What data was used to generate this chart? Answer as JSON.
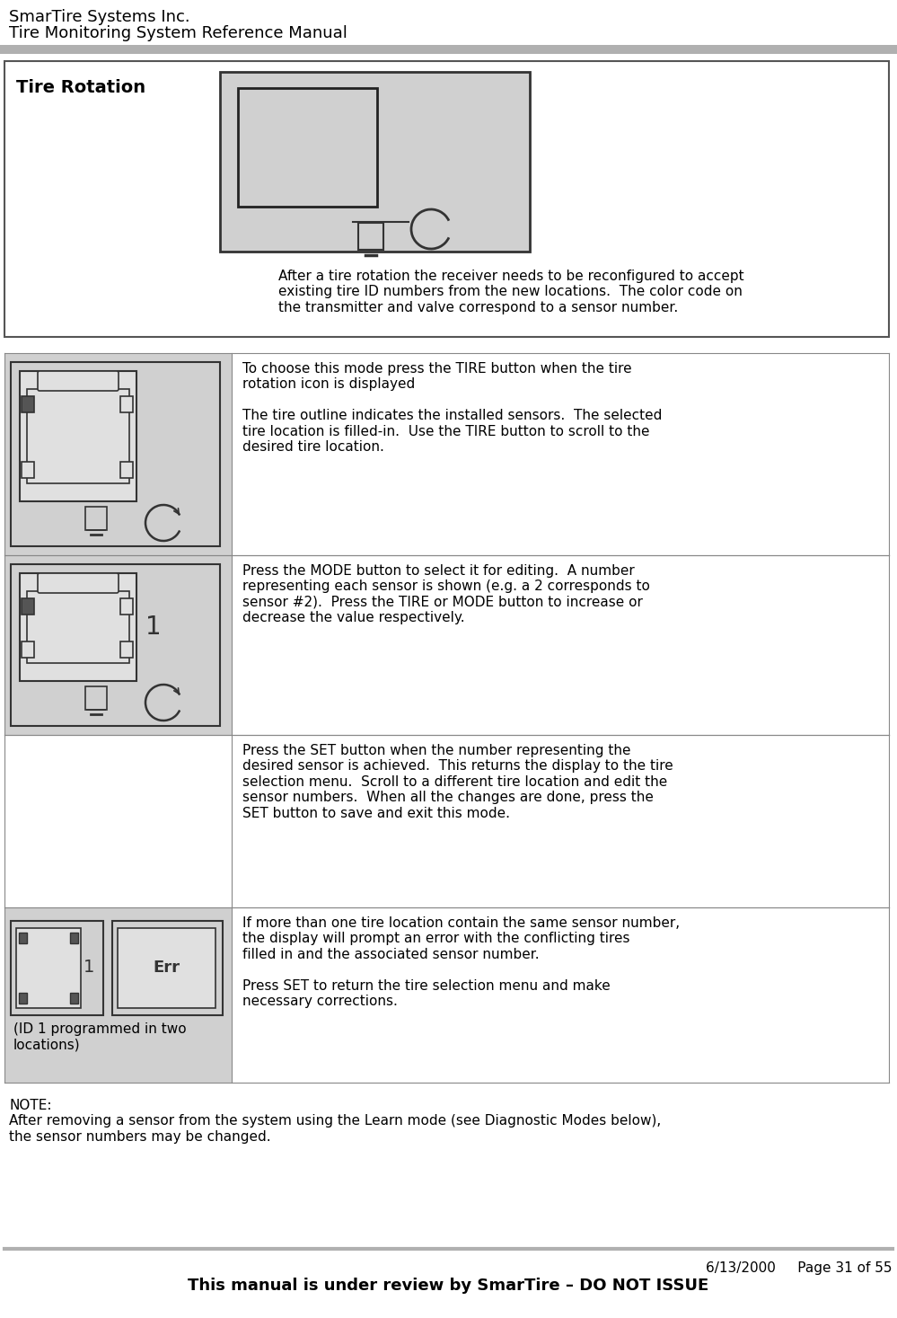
{
  "header_line1": "SmarTire Systems Inc.",
  "header_line2": "Tire Monitoring System Reference Manual",
  "header_bar_color": "#b0b0b0",
  "footer_date": "6/13/2000",
  "footer_page": "Page 31 of 55",
  "footer_note": "This manual is under review by SmarTire – DO NOT ISSUE",
  "section_title": "Tire Rotation",
  "intro_text": "After a tire rotation the receiver needs to be reconfigured to accept\nexisting tire ID numbers from the new locations.  The color code on\nthe transmitter and valve correspond to a sensor number.",
  "row1_text": "To choose this mode press the TIRE button when the tire\nrotation icon is displayed\n\nThe tire outline indicates the installed sensors.  The selected\ntire location is filled-in.  Use the TIRE button to scroll to the\ndesired tire location.",
  "row2_text": "Press the MODE button to select it for editing.  A number\nrepresenting each sensor is shown (e.g. a 2 corresponds to\nsensor #2).  Press the TIRE or MODE button to increase or\ndecrease the value respectively.",
  "row3_text": "Press the SET button when the number representing the\ndesired sensor is achieved.  This returns the display to the tire\nselection menu.  Scroll to a different tire location and edit the\nsensor numbers.  When all the changes are done, press the\nSET button to save and exit this mode.",
  "row4_text": "If more than one tire location contain the same sensor number,\nthe display will prompt an error with the conflicting tires\nfilled in and the associated sensor number.\n\nPress SET to return the tire selection menu and make\nnecessary corrections.",
  "row4_caption": "(ID 1 programmed in two\nlocations)",
  "note_text": "NOTE:\nAfter removing a sensor from the system using the Learn mode (see Diagnostic Modes below),\nthe sensor numbers may be changed.",
  "bg_color": "#ffffff",
  "text_color": "#000000",
  "cell_bg_gray": "#d0d0d0"
}
